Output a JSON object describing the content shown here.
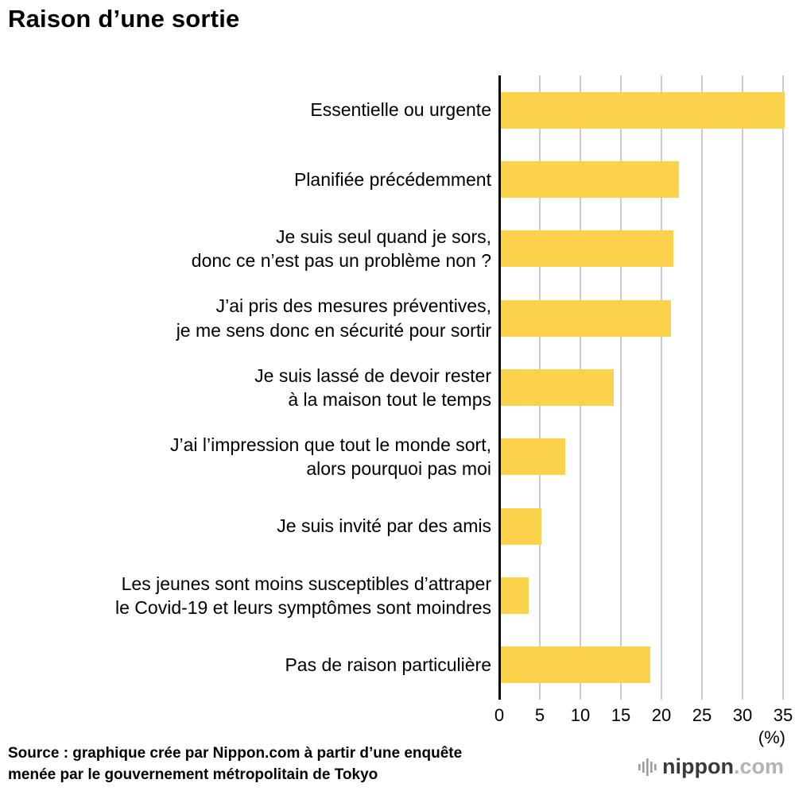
{
  "title": "Raison d’une sortie",
  "chart_data": {
    "type": "bar",
    "orientation": "horizontal",
    "categories": [
      [
        "Essentielle ou urgente"
      ],
      [
        "Planifiée précédemment"
      ],
      [
        "Je suis seul quand je sors,",
        "donc ce n’est pas un problème non ?"
      ],
      [
        "J’ai pris des mesures préventives,",
        "je me sens donc en sécurité pour sortir"
      ],
      [
        "Je suis lassé de devoir rester",
        "à la maison tout le temps"
      ],
      [
        "J’ai l’impression que tout le monde sort,",
        "alors pourquoi pas moi"
      ],
      [
        "Je suis invité par des amis"
      ],
      [
        "Les jeunes sont moins susceptibles d’attraper",
        "le Covid-19 et leurs symptômes sont moindres"
      ],
      [
        "Pas de raison particulière"
      ]
    ],
    "values": [
      35,
      22,
      21.3,
      21,
      14,
      8,
      5,
      3.5,
      18.5
    ],
    "xlim": [
      0,
      35
    ],
    "xticks": [
      0,
      5,
      10,
      15,
      20,
      25,
      30,
      35
    ],
    "x_unit_label": "(%)",
    "bar_color": "#FBD24C",
    "grid": true,
    "legend": false,
    "title": "Raison d’une sortie"
  },
  "source": {
    "line1": "Source : graphique crée par Nippon.com à partir d’une enquête",
    "line2": "menée par le gouvernement métropolitain de Tokyo"
  },
  "logo": {
    "brand": "nippon",
    "tld": ".com"
  }
}
